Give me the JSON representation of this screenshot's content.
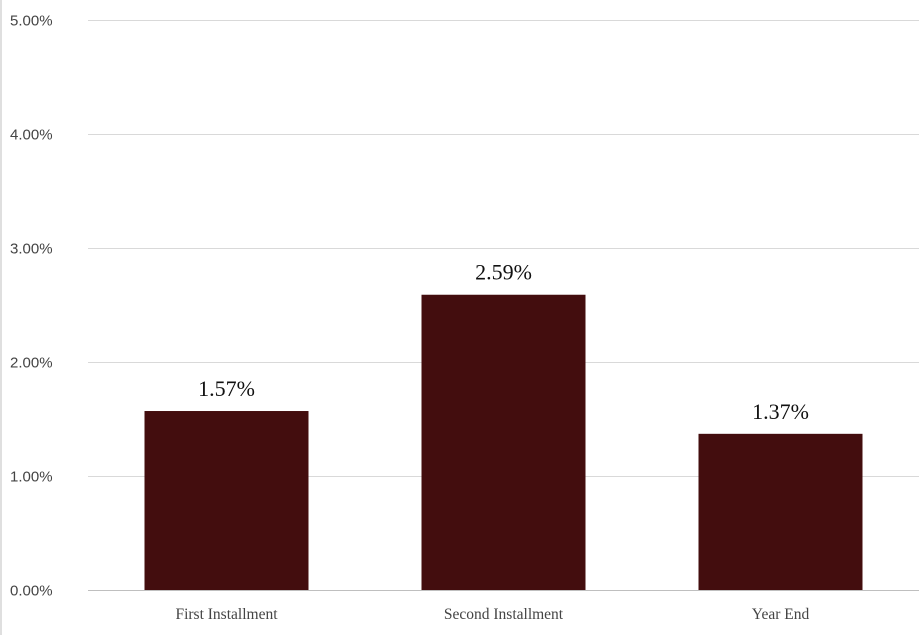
{
  "chart_data": {
    "type": "bar",
    "title": "",
    "xlabel": "",
    "ylabel": "",
    "categories": [
      "First Installment",
      "Second Installment",
      "Year End"
    ],
    "values": [
      1.57,
      2.59,
      1.37
    ],
    "data_labels": [
      "1.57%",
      "2.59%",
      "1.37%"
    ],
    "ylim": [
      0,
      5
    ],
    "yticks": [
      0,
      1,
      2,
      3,
      4,
      5
    ],
    "ytick_labels": [
      "0.00%",
      "1.00%",
      "2.00%",
      "3.00%",
      "4.00%",
      "5.00%"
    ],
    "grid": true,
    "legend": "none",
    "colors": {
      "bar": "#430d0e",
      "grid": "#d9d9d9",
      "axis": "#bfbfbf"
    }
  }
}
